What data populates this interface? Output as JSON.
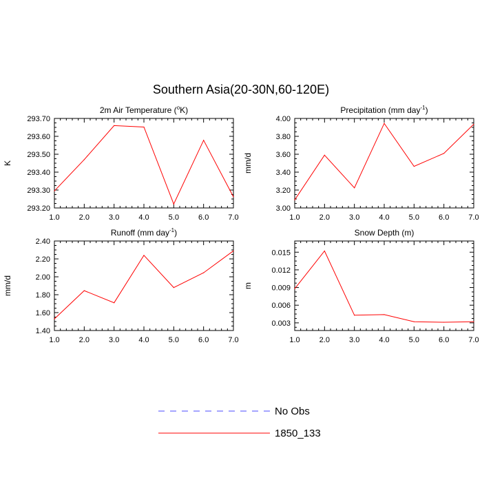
{
  "figure_title": "Southern Asia(20-30N,60-120E)",
  "legend": [
    {
      "label": "No Obs",
      "color": "#4a4aff",
      "dash": true
    },
    {
      "label": "1850_133",
      "color": "#ff0000",
      "dash": false
    }
  ],
  "chart_data": [
    {
      "type": "line",
      "title": "2m Air Temperature (°K)",
      "title_parts": {
        "before": "2m Air Temperature (",
        "sup": "o",
        "after": "K)"
      },
      "ylabel": "K",
      "xlim": [
        1,
        7
      ],
      "ylim": [
        293.2,
        293.7
      ],
      "xticks": [
        1,
        2,
        3,
        4,
        5,
        6,
        7
      ],
      "xtick_labels": [
        "1.0",
        "2.0",
        "3.0",
        "4.0",
        "5.0",
        "6.0",
        "7.0"
      ],
      "yticks": [
        293.2,
        293.3,
        293.4,
        293.5,
        293.6,
        293.7
      ],
      "ytick_labels": [
        "293.20",
        "293.30",
        "293.40",
        "293.50",
        "293.60",
        "293.70"
      ],
      "series": [
        {
          "name": "1850_133",
          "color": "#ff0000",
          "x": [
            1,
            2,
            3,
            4,
            5,
            6,
            7
          ],
          "y": [
            293.295,
            293.47,
            293.66,
            293.652,
            293.222,
            293.578,
            293.262
          ]
        }
      ]
    },
    {
      "type": "line",
      "title": "Precipitation (mm day-1)",
      "title_parts": {
        "before": "Precipitation (mm day",
        "sup": "-1",
        "after": ")"
      },
      "ylabel": "mm/d",
      "xlim": [
        1,
        7
      ],
      "ylim": [
        3.0,
        4.0
      ],
      "xticks": [
        1,
        2,
        3,
        4,
        5,
        6,
        7
      ],
      "xtick_labels": [
        "1.0",
        "2.0",
        "3.0",
        "4.0",
        "5.0",
        "6.0",
        "7.0"
      ],
      "yticks": [
        3.0,
        3.2,
        3.4,
        3.6,
        3.8,
        4.0
      ],
      "ytick_labels": [
        "3.00",
        "3.20",
        "3.40",
        "3.60",
        "3.80",
        "4.00"
      ],
      "series": [
        {
          "name": "1850_133",
          "color": "#ff0000",
          "x": [
            1,
            2,
            3,
            4,
            5,
            6,
            7
          ],
          "y": [
            3.09,
            3.59,
            3.225,
            3.945,
            3.465,
            3.61,
            3.935
          ]
        }
      ]
    },
    {
      "type": "line",
      "title": "Runoff (mm day-1)",
      "title_parts": {
        "before": "Runoff (mm day",
        "sup": "-1",
        "after": ")"
      },
      "ylabel": "mm/d",
      "xlim": [
        1,
        7
      ],
      "ylim": [
        1.4,
        2.4
      ],
      "xticks": [
        1,
        2,
        3,
        4,
        5,
        6,
        7
      ],
      "xtick_labels": [
        "1.0",
        "2.0",
        "3.0",
        "4.0",
        "5.0",
        "6.0",
        "7.0"
      ],
      "yticks": [
        1.4,
        1.6,
        1.8,
        2.0,
        2.2,
        2.4
      ],
      "ytick_labels": [
        "1.40",
        "1.60",
        "1.80",
        "2.00",
        "2.20",
        "2.40"
      ],
      "series": [
        {
          "name": "1850_133",
          "color": "#ff0000",
          "x": [
            1,
            2,
            3,
            4,
            5,
            6,
            7
          ],
          "y": [
            1.53,
            1.845,
            1.71,
            2.24,
            1.88,
            2.045,
            2.29
          ]
        }
      ]
    },
    {
      "type": "line",
      "title": "Snow Depth (m)",
      "title_parts": {
        "before": "Snow Depth (m)",
        "sup": "",
        "after": ""
      },
      "ylabel": "m",
      "xlim": [
        1,
        7
      ],
      "ylim": [
        0.0017,
        0.0169
      ],
      "xticks": [
        1,
        2,
        3,
        4,
        5,
        6,
        7
      ],
      "xtick_labels": [
        "1.0",
        "2.0",
        "3.0",
        "4.0",
        "5.0",
        "6.0",
        "7.0"
      ],
      "yticks": [
        0.003,
        0.006,
        0.009,
        0.012,
        0.015
      ],
      "ytick_labels": [
        "0.003",
        "0.006",
        "0.009",
        "0.012",
        "0.015"
      ],
      "series": [
        {
          "name": "1850_133",
          "color": "#ff0000",
          "x": [
            1,
            2,
            3,
            4,
            5,
            6,
            7
          ],
          "y": [
            0.0088,
            0.0152,
            0.0043,
            0.0044,
            0.0032,
            0.0031,
            0.0032
          ]
        }
      ]
    }
  ]
}
